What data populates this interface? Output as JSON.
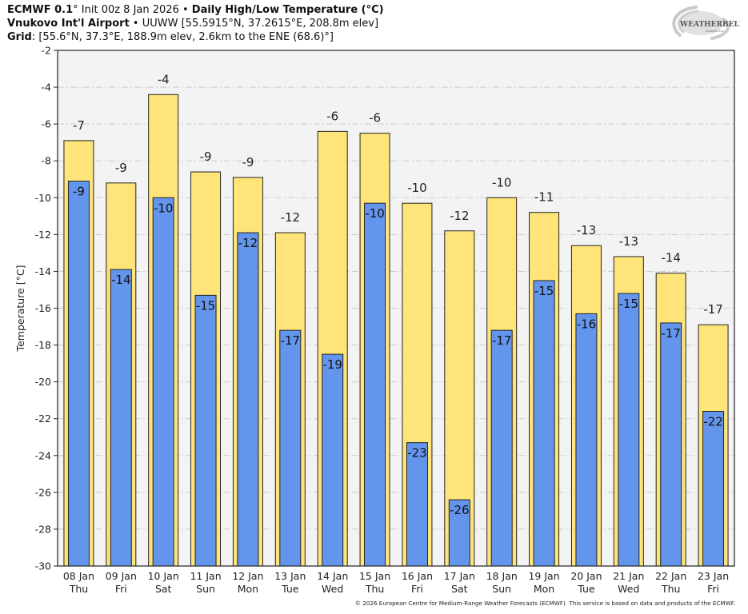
{
  "header": {
    "line1_bold_a": "ECMWF 0.1",
    "line1_deg": "°",
    "line1_plain": " Init 00z 8 Jan 2026 • ",
    "line1_bold_b": "Daily High/Low Temperature (°C)",
    "line2_bold": "Vnukovo Int'l Airport",
    "line2_plain": " • UUWW [55.5915°N, 37.2615°E, 208.8m elev]",
    "line3_bold": "Grid",
    "line3_plain": ": [55.6°N, 37.3°E, 188.9m elev, 2.6km to the ENE (68.6)°]"
  },
  "logo": {
    "text_main": "WEATHERBELL",
    "text_sub": "Analytics LLC",
    "icon": "swirl-logo-icon"
  },
  "copyright": "© 2026 European Centre for Medium-Range Weather Forecasts (ECMWF). This service is based on data and products of the ECMWF.",
  "colors": {
    "high": "#ffe47a",
    "low": "#6495ed",
    "plot_bg": "#f3f3f3",
    "grid": "#cccccc",
    "outline": "#222222"
  },
  "chart_data": {
    "type": "bar",
    "title": "Daily High/Low Temperature (°C)",
    "xlabel": "",
    "ylabel": "Temperature [°C]",
    "ylim": [
      -30,
      -2
    ],
    "yticks": [
      -2,
      -4,
      -6,
      -8,
      -10,
      -12,
      -14,
      -16,
      -18,
      -20,
      -22,
      -24,
      -26,
      -28,
      -30
    ],
    "grid": true,
    "categories": [
      "08 Jan",
      "09 Jan",
      "10 Jan",
      "11 Jan",
      "12 Jan",
      "13 Jan",
      "14 Jan",
      "15 Jan",
      "16 Jan",
      "17 Jan",
      "18 Jan",
      "19 Jan",
      "20 Jan",
      "21 Jan",
      "22 Jan",
      "23 Jan"
    ],
    "weekdays": [
      "Thu",
      "Fri",
      "Sat",
      "Sun",
      "Mon",
      "Tue",
      "Wed",
      "Thu",
      "Fri",
      "Sat",
      "Sun",
      "Mon",
      "Tue",
      "Wed",
      "Thu",
      "Fri"
    ],
    "series": [
      {
        "name": "High",
        "color": "#ffe47a",
        "values": [
          -6.9,
          -9.2,
          -4.4,
          -8.6,
          -8.9,
          -11.9,
          -6.4,
          -6.5,
          -10.3,
          -11.8,
          -10.0,
          -10.8,
          -12.6,
          -13.2,
          -14.1,
          -16.9
        ],
        "labels": [
          "-7",
          "-9",
          "-4",
          "-9",
          "-9",
          "-12",
          "-6",
          "-6",
          "-10",
          "-12",
          "-10",
          "-11",
          "-13",
          "-13",
          "-14",
          "-17"
        ]
      },
      {
        "name": "Low",
        "color": "#6495ed",
        "values": [
          -9.1,
          -13.9,
          -10.0,
          -15.3,
          -11.9,
          -17.2,
          -18.5,
          -10.3,
          -23.3,
          -26.4,
          -17.2,
          -14.5,
          -16.3,
          -15.2,
          -16.8,
          -21.6
        ],
        "labels": [
          "-9",
          "-14",
          "-10",
          "-15",
          "-12",
          "-17",
          "-19",
          "-10",
          "-23",
          "-26",
          "-17",
          "-15",
          "-16",
          "-15",
          "-17",
          "-22"
        ]
      }
    ]
  }
}
